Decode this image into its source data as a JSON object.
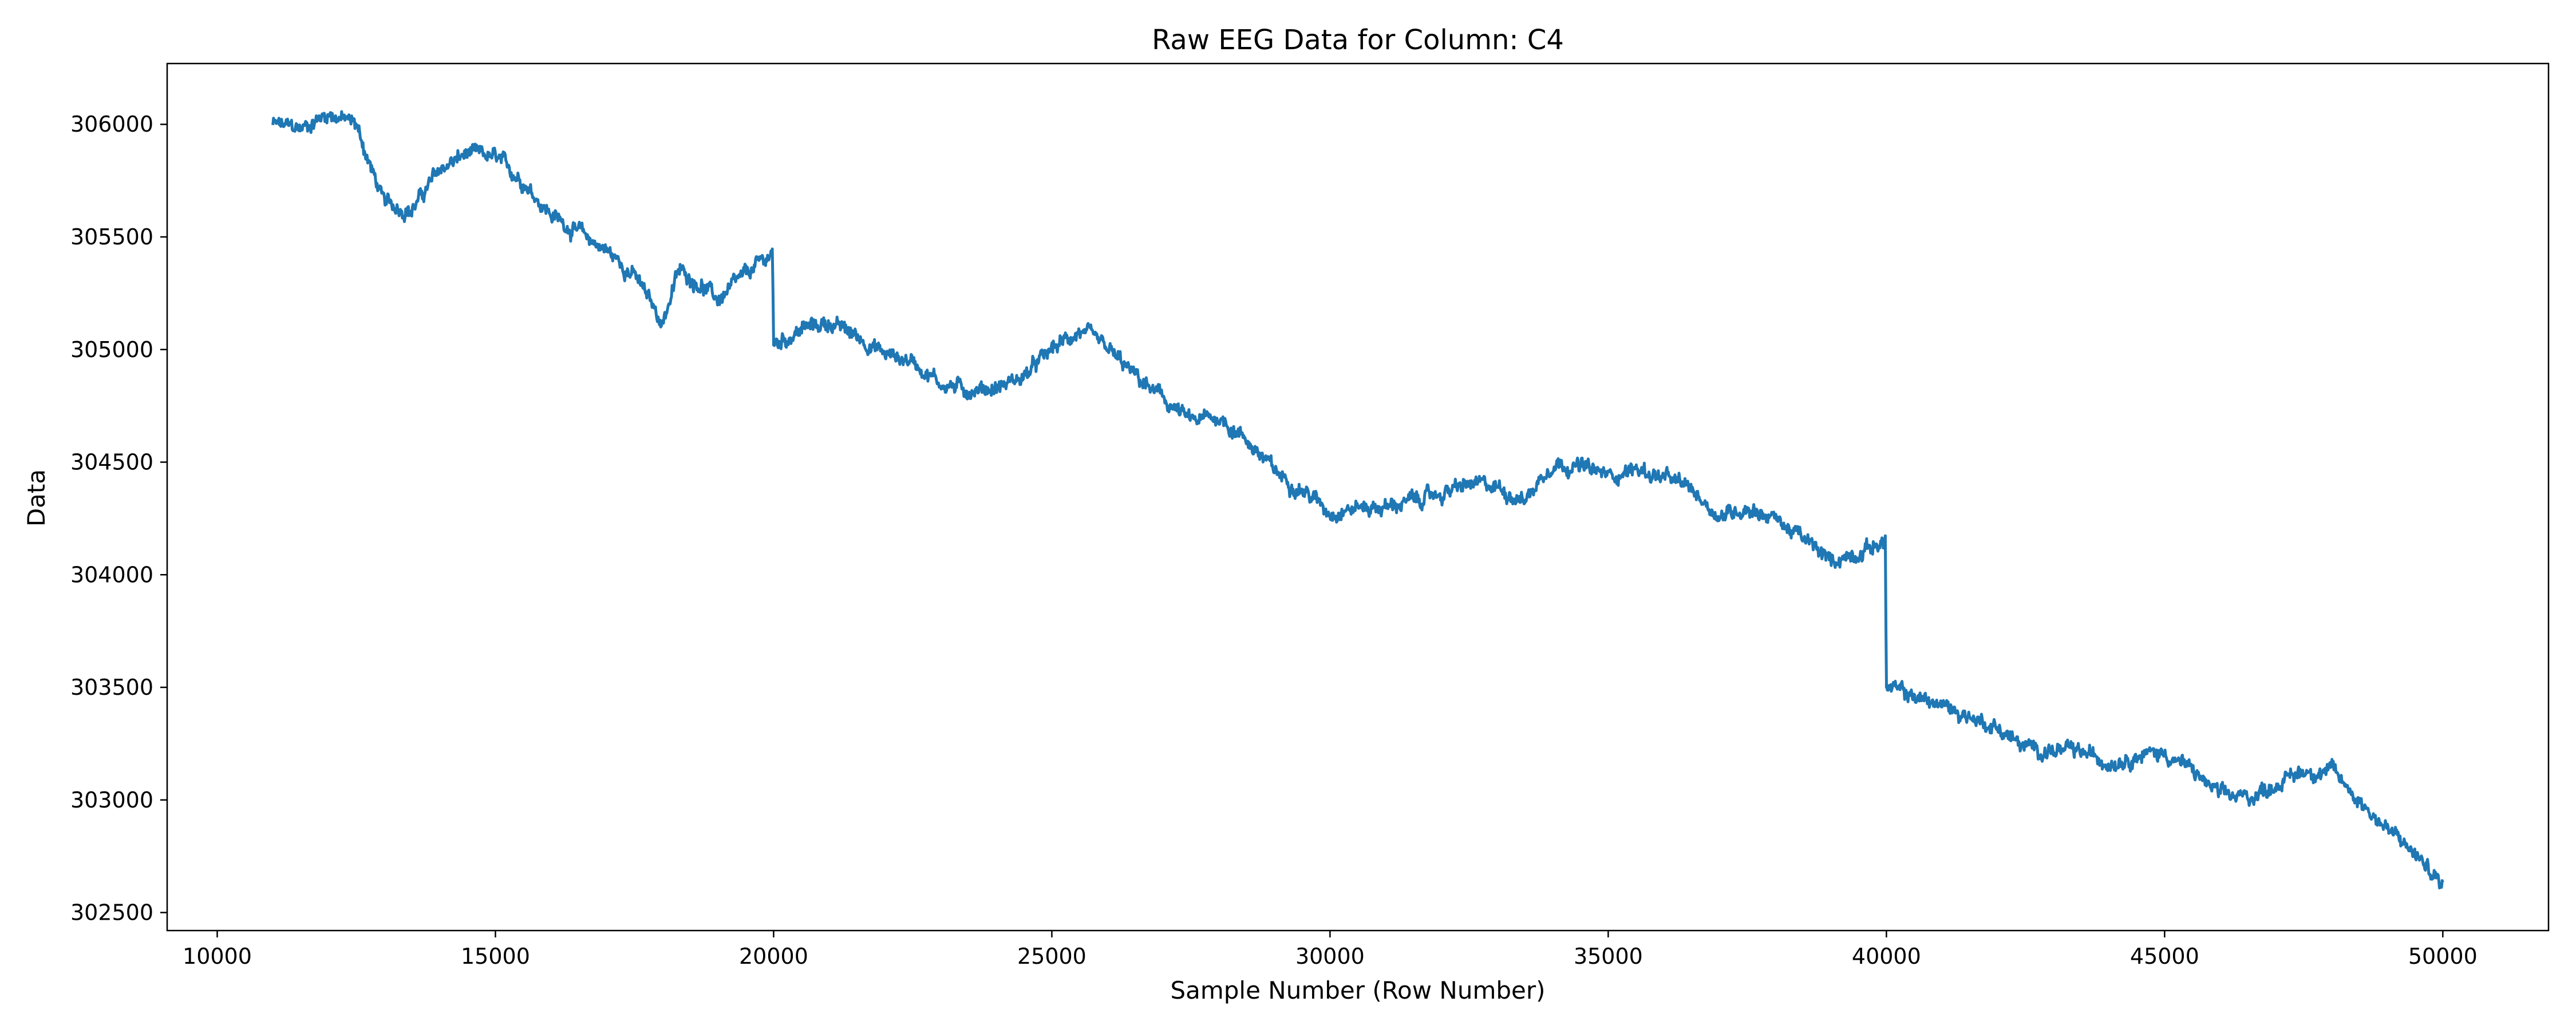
{
  "chart_data": {
    "type": "line",
    "title": "Raw EEG Data for Column: C4",
    "xlabel": "Sample Number (Row Number)",
    "ylabel": "Data",
    "xlim": [
      9100,
      51900
    ],
    "ylim": [
      302420,
      306270
    ],
    "x_ticks": [
      10000,
      15000,
      20000,
      25000,
      30000,
      35000,
      40000,
      45000,
      50000
    ],
    "y_ticks": [
      302500,
      303000,
      303500,
      304000,
      304500,
      305000,
      305500,
      306000
    ],
    "grid": false,
    "legend": "none",
    "series": [
      {
        "color": "#1f77b4",
        "x_range": [
          11000,
          50000
        ],
        "points": [
          [
            11000,
            306000
          ],
          [
            11500,
            305980
          ],
          [
            12000,
            306050
          ],
          [
            12500,
            306000
          ],
          [
            12700,
            305850
          ],
          [
            13000,
            305650
          ],
          [
            13500,
            305620
          ],
          [
            14000,
            305800
          ],
          [
            14500,
            305870
          ],
          [
            15000,
            305850
          ],
          [
            15500,
            305750
          ],
          [
            16000,
            305600
          ],
          [
            16500,
            305520
          ],
          [
            17000,
            305440
          ],
          [
            17500,
            305330
          ],
          [
            18000,
            305120
          ],
          [
            18300,
            305350
          ],
          [
            18700,
            305290
          ],
          [
            19000,
            305220
          ],
          [
            19500,
            305330
          ],
          [
            19980,
            305430
          ],
          [
            20000,
            305020
          ],
          [
            20500,
            305090
          ],
          [
            21000,
            305120
          ],
          [
            21500,
            305060
          ],
          [
            22000,
            304980
          ],
          [
            22500,
            304950
          ],
          [
            23000,
            304850
          ],
          [
            23500,
            304820
          ],
          [
            24000,
            304830
          ],
          [
            24500,
            304880
          ],
          [
            25000,
            305000
          ],
          [
            25500,
            305080
          ],
          [
            26000,
            305000
          ],
          [
            26500,
            304880
          ],
          [
            27000,
            304780
          ],
          [
            27500,
            304680
          ],
          [
            28000,
            304700
          ],
          [
            28500,
            304600
          ],
          [
            29000,
            304460
          ],
          [
            29500,
            304380
          ],
          [
            30000,
            304280
          ],
          [
            30500,
            304300
          ],
          [
            31000,
            304300
          ],
          [
            31500,
            304330
          ],
          [
            32000,
            304360
          ],
          [
            32500,
            304400
          ],
          [
            33000,
            304390
          ],
          [
            33500,
            304330
          ],
          [
            34000,
            304500
          ],
          [
            34500,
            304480
          ],
          [
            35000,
            304440
          ],
          [
            35500,
            304470
          ],
          [
            36000,
            304430
          ],
          [
            36500,
            304380
          ],
          [
            37000,
            304260
          ],
          [
            37500,
            304300
          ],
          [
            38000,
            304250
          ],
          [
            38500,
            304160
          ],
          [
            39000,
            304060
          ],
          [
            39500,
            304100
          ],
          [
            39980,
            304150
          ],
          [
            40000,
            303500
          ],
          [
            40500,
            303460
          ],
          [
            41000,
            303420
          ],
          [
            41500,
            303370
          ],
          [
            42000,
            303320
          ],
          [
            42500,
            303230
          ],
          [
            43000,
            303220
          ],
          [
            43500,
            303210
          ],
          [
            44000,
            303170
          ],
          [
            44500,
            303200
          ],
          [
            45000,
            303210
          ],
          [
            45500,
            303130
          ],
          [
            46000,
            303020
          ],
          [
            46500,
            303010
          ],
          [
            47000,
            303070
          ],
          [
            47500,
            303130
          ],
          [
            48000,
            303130
          ],
          [
            48500,
            303000
          ],
          [
            49000,
            302870
          ],
          [
            49500,
            302760
          ],
          [
            50000,
            302620
          ]
        ]
      }
    ]
  }
}
